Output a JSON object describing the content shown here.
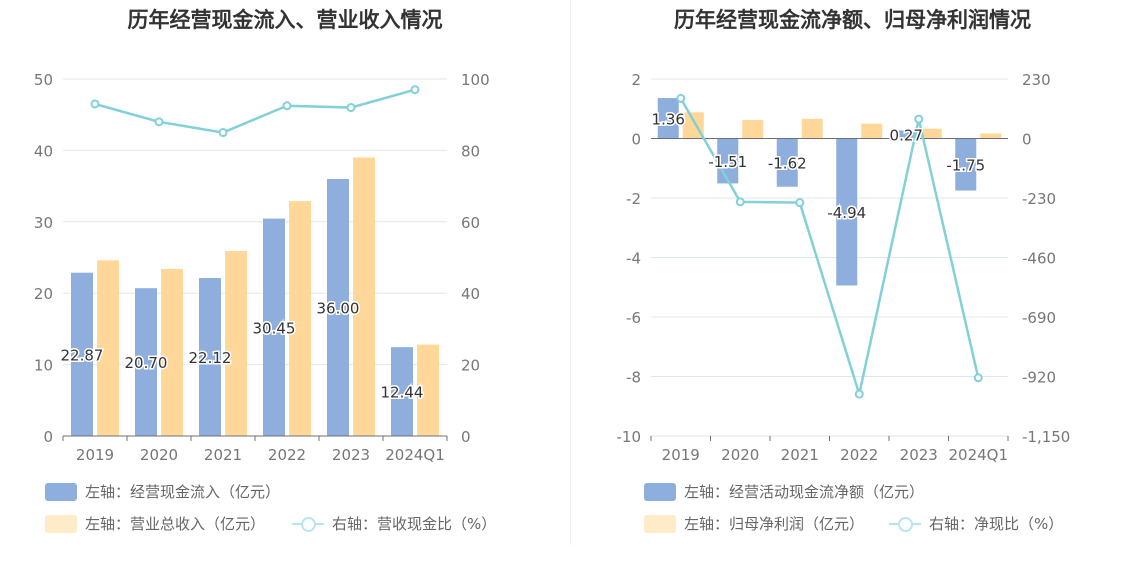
{
  "left": {
    "title": "历年经营现金流入、营业收入情况",
    "legend": {
      "s1": "左轴：经营现金流入（亿元）",
      "s2": "左轴：营业总收入（亿元）",
      "s3": "右轴：营收现金比（%）"
    }
  },
  "right": {
    "title": "历年经营现金流净额、归母净利润情况",
    "legend": {
      "s1": "左轴：经营活动现金流净额（亿元）",
      "s2": "左轴：归母净利润（亿元）",
      "s3": "右轴：净现比（%）"
    }
  },
  "colors": {
    "bar1": "#8eaedd",
    "bar2": "#ffd899",
    "line": "#82d0d8",
    "legend_bar2": "#ffebc7",
    "legend_line": "#b6e5ea"
  },
  "chart_data": [
    {
      "type": "bar",
      "categories": [
        "2019",
        "2020",
        "2021",
        "2022",
        "2023",
        "2024Q1"
      ],
      "series": [
        {
          "name": "左轴：经营现金流入（亿元）",
          "axis": "left",
          "values": [
            22.87,
            20.7,
            22.12,
            30.45,
            36.0,
            12.44
          ],
          "labels": [
            "22.87",
            "20.70",
            "22.12",
            "30.45",
            "36.00",
            "12.44"
          ]
        },
        {
          "name": "左轴：营业总收入（亿元）",
          "axis": "left",
          "values": [
            24.6,
            23.4,
            25.9,
            32.9,
            39.0,
            12.8
          ]
        },
        {
          "name": "右轴：营收现金比（%）",
          "axis": "right",
          "type": "line",
          "values": [
            93,
            88,
            85,
            92.5,
            92,
            97
          ]
        }
      ],
      "y_left": {
        "min": 0,
        "max": 50,
        "ticks": [
          "0",
          "10",
          "20",
          "30",
          "40",
          "50"
        ]
      },
      "y_right": {
        "min": 0,
        "max": 100,
        "ticks": [
          "0",
          "20",
          "40",
          "60",
          "80",
          "100"
        ]
      },
      "grid": true
    },
    {
      "type": "bar",
      "categories": [
        "2019",
        "2020",
        "2021",
        "2022",
        "2023",
        "2024Q1"
      ],
      "series": [
        {
          "name": "左轴：经营活动现金流净额（亿元）",
          "axis": "left",
          "values": [
            1.36,
            -1.51,
            -1.62,
            -4.94,
            0.27,
            -1.75
          ],
          "labels": [
            "1.36",
            "-1.51",
            "-1.62",
            "-4.94",
            "0.27",
            "-1.75"
          ]
        },
        {
          "name": "左轴：归母净利润（亿元）",
          "axis": "left",
          "values": [
            0.88,
            0.62,
            0.66,
            0.5,
            0.33,
            0.17
          ]
        },
        {
          "name": "右轴：净现比（%）",
          "axis": "right",
          "type": "line",
          "values": [
            155,
            -245,
            -248,
            -988,
            75,
            -925
          ]
        }
      ],
      "y_left": {
        "min": -10,
        "max": 2,
        "ticks": [
          "-10",
          "-8",
          "-6",
          "-4",
          "-2",
          "0",
          "2"
        ]
      },
      "y_right": {
        "min": -1150,
        "max": 230,
        "ticks": [
          "-1,150",
          "-920",
          "-690",
          "-460",
          "-230",
          "0",
          "230"
        ]
      },
      "grid": true
    }
  ]
}
